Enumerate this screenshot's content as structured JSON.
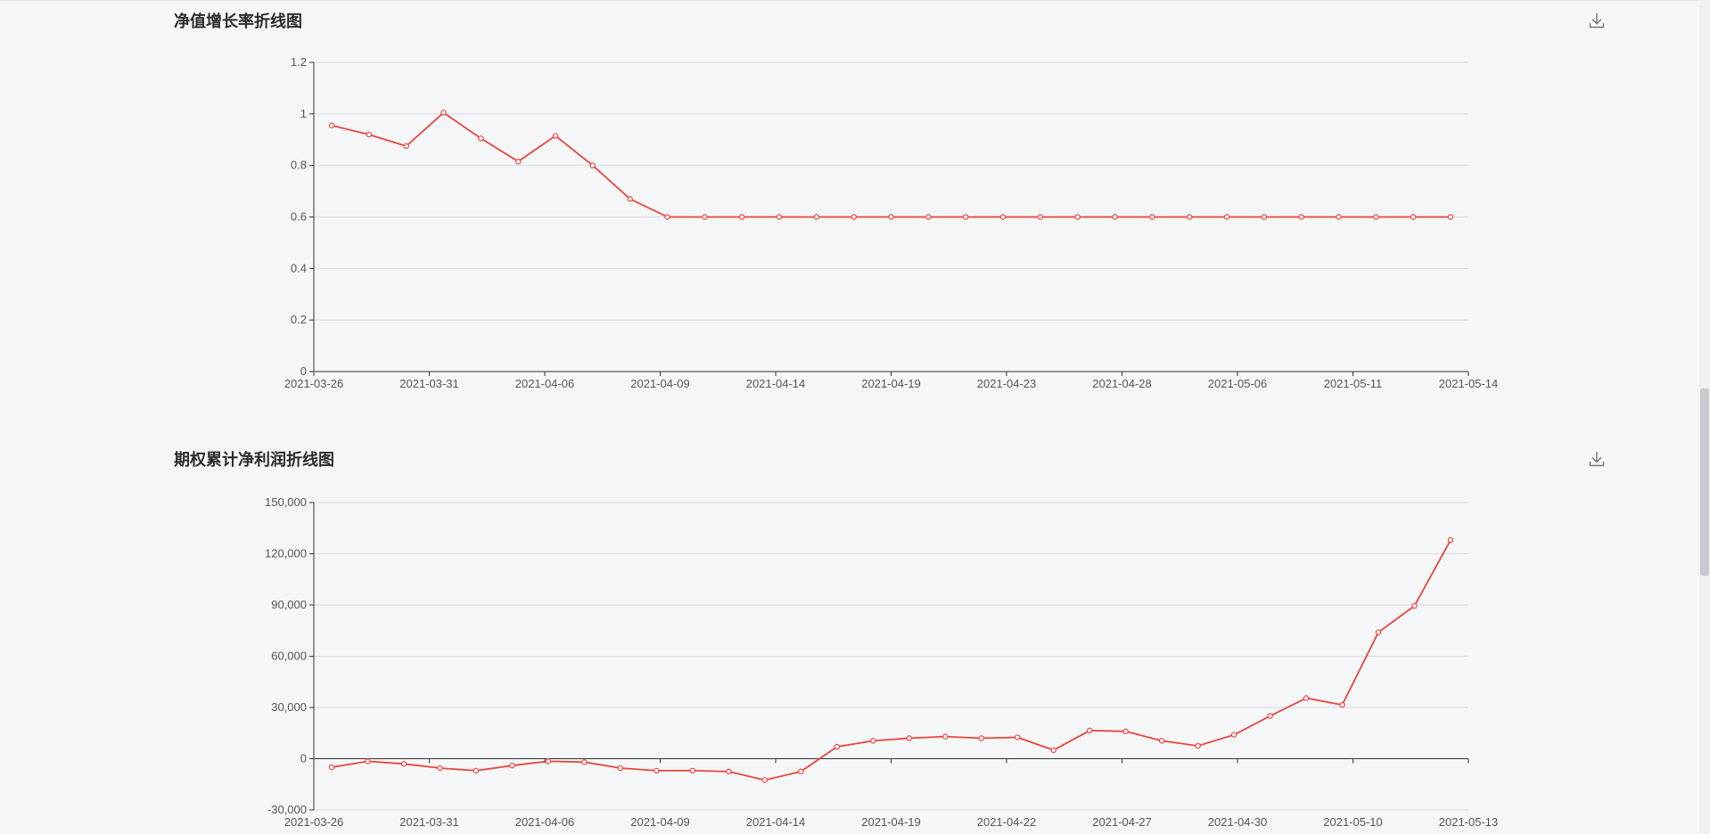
{
  "charts": [
    {
      "title": "净值增长率折线图",
      "download_icon": "download-icon"
    },
    {
      "title": "期权累计净利润折线图",
      "download_icon": "download-icon"
    }
  ],
  "colors": {
    "line": "#e8453c",
    "grid": "#d9dbe0",
    "axis": "#333333",
    "background": "#f5f6f8"
  },
  "scrollbar": {
    "position_fraction": 0.6
  },
  "chart_data": [
    {
      "type": "line",
      "title": "净值增长率折线图",
      "xlabel": "",
      "ylabel": "",
      "ylim": [
        0,
        1.2
      ],
      "yticks": [
        "0",
        "0.2",
        "0.4",
        "0.6",
        "0.8",
        "1",
        "1.2"
      ],
      "xticks": [
        "2021-03-26",
        "2021-03-31",
        "2021-04-06",
        "2021-04-09",
        "2021-04-14",
        "2021-04-19",
        "2021-04-23",
        "2021-04-28",
        "2021-05-06",
        "2021-05-11",
        "2021-05-14"
      ],
      "grid": true,
      "series": [
        {
          "values": [
            0.955,
            0.92,
            0.875,
            1.005,
            0.905,
            0.815,
            0.915,
            0.8,
            0.67,
            0.6,
            0.6,
            0.6,
            0.6,
            0.6,
            0.6,
            0.6,
            0.6,
            0.6,
            0.6,
            0.6,
            0.6,
            0.6,
            0.6,
            0.6,
            0.6,
            0.6,
            0.6,
            0.6,
            0.6,
            0.6,
            0.6
          ]
        }
      ]
    },
    {
      "type": "line",
      "title": "期权累计净利润折线图",
      "xlabel": "",
      "ylabel": "",
      "ylim": [
        -30000,
        150000
      ],
      "yticks": [
        "-30,000",
        "0",
        "30,000",
        "60,000",
        "90,000",
        "120,000",
        "150,000"
      ],
      "xticks": [
        "2021-03-26",
        "2021-03-31",
        "2021-04-06",
        "2021-04-09",
        "2021-04-14",
        "2021-04-19",
        "2021-04-22",
        "2021-04-27",
        "2021-04-30",
        "2021-05-10",
        "2021-05-13"
      ],
      "grid": true,
      "series": [
        {
          "values": [
            -5000,
            -1500,
            -3000,
            -5500,
            -7000,
            -4000,
            -1500,
            -2000,
            -5500,
            -7000,
            -7000,
            -7500,
            -12500,
            -7500,
            7000,
            10500,
            12000,
            13000,
            12000,
            12500,
            5000,
            16500,
            16000,
            10500,
            7500,
            14000,
            25000,
            35500,
            31500,
            74000,
            89500,
            128000
          ]
        }
      ]
    }
  ]
}
